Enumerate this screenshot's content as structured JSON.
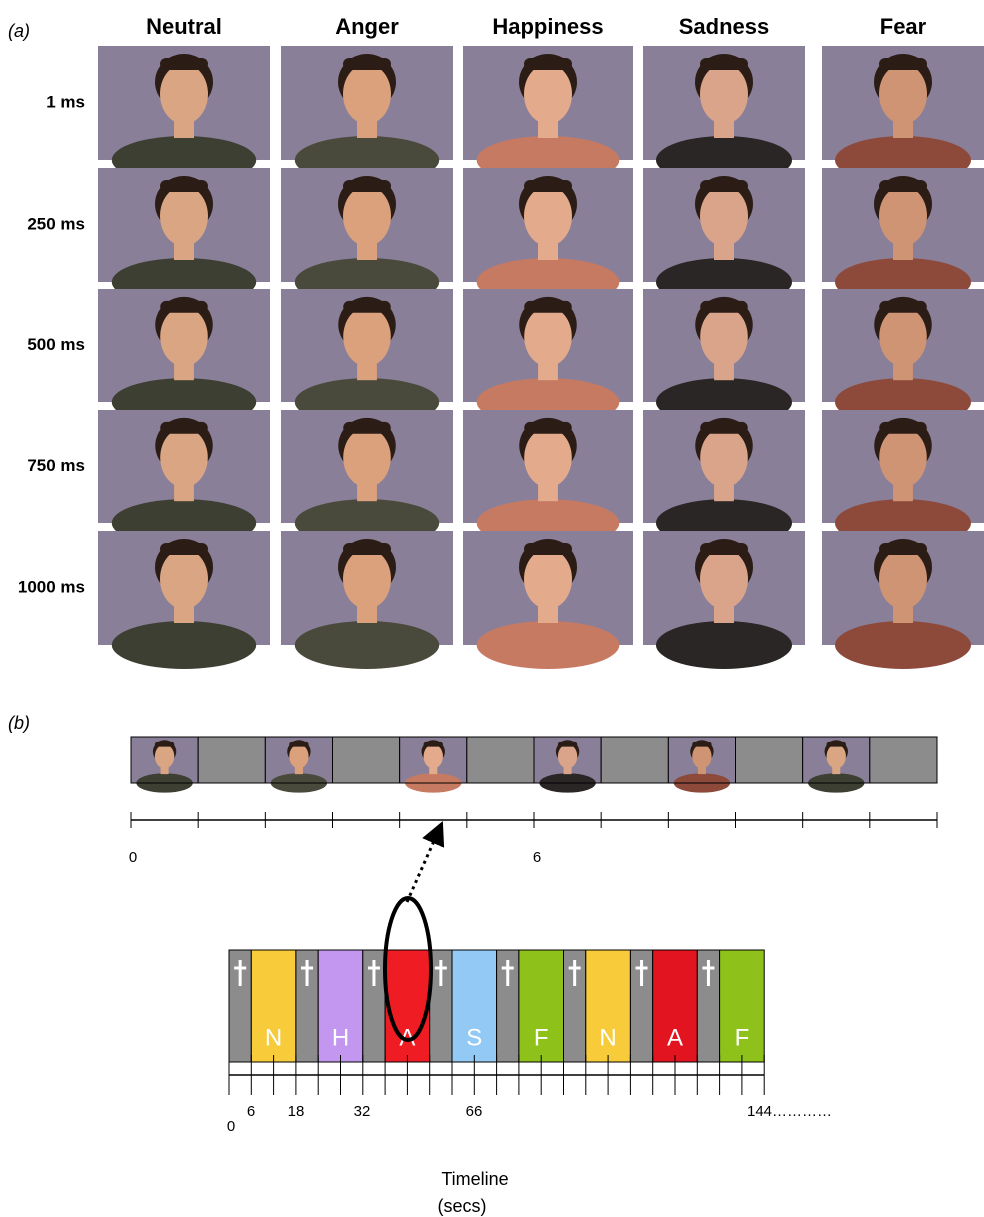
{
  "panel_a": {
    "label": "(a)",
    "columns": [
      "Neutral",
      "Anger",
      "Happiness",
      "Sadness",
      "Fear"
    ],
    "rows": [
      "1 ms",
      "250 ms",
      "500 ms",
      "750 ms",
      "1000 ms"
    ]
  },
  "panel_b": {
    "label": "(b)",
    "strip_tick_labels": [
      "0",
      "6"
    ],
    "blocks": [
      {
        "letter": "N",
        "color": "#f7cb3a"
      },
      {
        "letter": "H",
        "color": "#c397f0"
      },
      {
        "letter": "A",
        "color": "#ef1c24"
      },
      {
        "letter": "S",
        "color": "#93c9f5"
      },
      {
        "letter": "F",
        "color": "#8ec21a"
      },
      {
        "letter": "N",
        "color": "#f7cb3a"
      },
      {
        "letter": "A",
        "color": "#e2141f"
      },
      {
        "letter": "F",
        "color": "#8ec21a"
      }
    ],
    "timeline_tick_labels": [
      "0",
      "6",
      "18",
      "32",
      "66",
      "144…………"
    ],
    "axis_title": [
      "Timeline",
      "(secs)"
    ]
  }
}
